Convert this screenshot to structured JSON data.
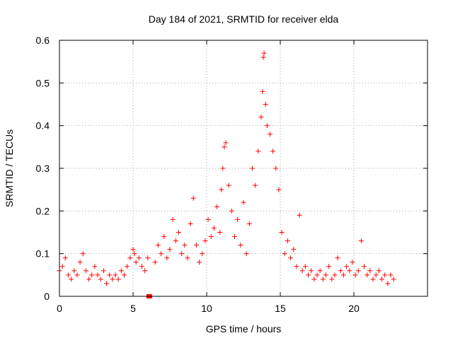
{
  "chart_data": {
    "type": "scatter",
    "title": "Day 184 of 2021, SRMTID for receiver elda",
    "xlabel": "GPS time / hours",
    "ylabel": "SRMTID / TECUs",
    "xlim": [
      0,
      25
    ],
    "ylim": [
      0,
      0.6
    ],
    "x_ticks": [
      0,
      5,
      10,
      15,
      20
    ],
    "x_tick_labels": [
      "0",
      "5",
      "10",
      "15",
      "20"
    ],
    "y_ticks": [
      0,
      0.1,
      0.2,
      0.3,
      0.4,
      0.5,
      0.6
    ],
    "y_tick_labels": [
      "0",
      "0.1",
      "0.2",
      "0.3",
      "0.4",
      "0.5",
      "0.6"
    ],
    "grid": true,
    "marker": "plus",
    "colors": {
      "series": "#ff0000",
      "grid": "#a0a0a0",
      "axes": "#000000"
    },
    "series": [
      {
        "name": "SRMTID",
        "x": [
          0.0,
          0.2,
          0.4,
          0.6,
          0.8,
          1.0,
          1.2,
          1.4,
          1.6,
          1.8,
          2.0,
          2.2,
          2.4,
          2.6,
          2.8,
          3.0,
          3.2,
          3.4,
          3.6,
          3.8,
          4.0,
          4.2,
          4.4,
          4.6,
          4.8,
          5.0,
          5.1,
          5.2,
          5.4,
          5.6,
          5.8,
          6.0,
          6.5,
          6.7,
          6.9,
          7.1,
          7.3,
          7.5,
          7.7,
          7.9,
          8.1,
          8.3,
          8.5,
          8.7,
          8.9,
          9.1,
          9.3,
          9.5,
          9.7,
          9.9,
          10.1,
          10.3,
          10.5,
          10.7,
          10.9,
          11.0,
          11.1,
          11.2,
          11.3,
          11.5,
          11.7,
          11.9,
          12.1,
          12.3,
          12.5,
          12.7,
          12.9,
          13.1,
          13.3,
          13.5,
          13.7,
          13.8,
          13.85,
          13.9,
          14.0,
          14.1,
          14.3,
          14.5,
          14.7,
          14.9,
          15.1,
          15.3,
          15.5,
          15.7,
          15.9,
          16.1,
          16.3,
          16.5,
          16.7,
          16.9,
          17.1,
          17.3,
          17.5,
          17.7,
          17.9,
          18.1,
          18.3,
          18.5,
          18.7,
          18.9,
          19.1,
          19.3,
          19.5,
          19.7,
          19.9,
          20.1,
          20.3,
          20.5,
          20.7,
          20.9,
          21.1,
          21.3,
          21.5,
          21.7,
          21.9,
          22.1,
          22.3,
          22.5,
          22.7
        ],
        "y": [
          0.06,
          0.07,
          0.09,
          0.05,
          0.04,
          0.06,
          0.05,
          0.08,
          0.1,
          0.06,
          0.04,
          0.05,
          0.07,
          0.05,
          0.04,
          0.06,
          0.03,
          0.05,
          0.04,
          0.05,
          0.04,
          0.06,
          0.05,
          0.07,
          0.09,
          0.11,
          0.1,
          0.08,
          0.09,
          0.07,
          0.06,
          0.09,
          0.08,
          0.12,
          0.1,
          0.14,
          0.09,
          0.11,
          0.18,
          0.13,
          0.15,
          0.1,
          0.12,
          0.09,
          0.17,
          0.23,
          0.12,
          0.08,
          0.1,
          0.13,
          0.18,
          0.14,
          0.16,
          0.21,
          0.15,
          0.25,
          0.3,
          0.35,
          0.36,
          0.26,
          0.2,
          0.14,
          0.18,
          0.12,
          0.22,
          0.1,
          0.17,
          0.3,
          0.26,
          0.34,
          0.42,
          0.48,
          0.56,
          0.57,
          0.45,
          0.4,
          0.38,
          0.34,
          0.3,
          0.25,
          0.15,
          0.1,
          0.13,
          0.09,
          0.11,
          0.07,
          0.19,
          0.06,
          0.07,
          0.05,
          0.06,
          0.04,
          0.05,
          0.06,
          0.04,
          0.05,
          0.07,
          0.04,
          0.05,
          0.09,
          0.06,
          0.05,
          0.07,
          0.06,
          0.08,
          0.05,
          0.06,
          0.13,
          0.07,
          0.05,
          0.06,
          0.04,
          0.05,
          0.06,
          0.04,
          0.05,
          0.03,
          0.05,
          0.04
        ]
      }
    ],
    "gap_marker": {
      "x": 6.1,
      "y": 0
    }
  }
}
